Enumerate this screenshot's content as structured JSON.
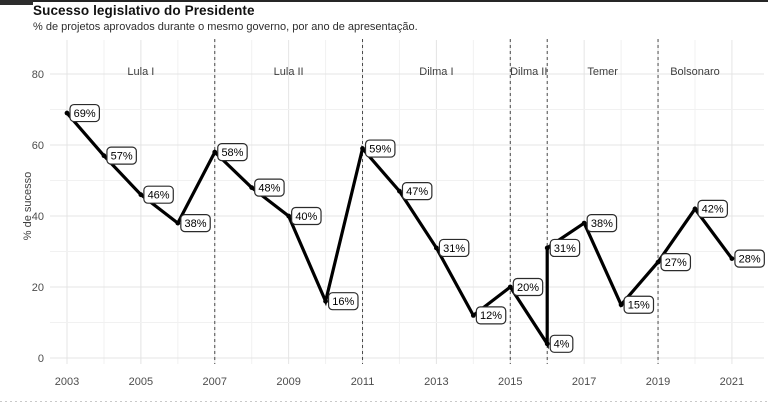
{
  "header": {
    "title": "Sucesso legislativo do Presidente",
    "subtitle": "% de projetos aprovados durante o mesmo governo, por ano de apresentação."
  },
  "chart_data": {
    "type": "line",
    "title": "Sucesso legislativo do Presidente",
    "subtitle": "% de projetos aprovados durante o mesmo governo, por ano de apresentação.",
    "xlabel": "",
    "ylabel": "% de sucesso",
    "xlim": [
      2003,
      2021
    ],
    "ylim": [
      0,
      80
    ],
    "grid": true,
    "legend": "none",
    "x_ticks": [
      2003,
      2005,
      2007,
      2009,
      2011,
      2013,
      2015,
      2017,
      2019,
      2021
    ],
    "y_ticks": [
      0,
      20,
      40,
      60,
      80
    ],
    "points": [
      {
        "year": 2003,
        "value": 69,
        "label": "69%",
        "term": "Lula I"
      },
      {
        "year": 2004,
        "value": 57,
        "label": "57%",
        "term": "Lula I"
      },
      {
        "year": 2005,
        "value": 46,
        "label": "46%",
        "term": "Lula I"
      },
      {
        "year": 2006,
        "value": 38,
        "label": "38%",
        "term": "Lula I"
      },
      {
        "year": 2007,
        "value": 58,
        "label": "58%",
        "term": "Lula II"
      },
      {
        "year": 2008,
        "value": 48,
        "label": "48%",
        "term": "Lula II"
      },
      {
        "year": 2009,
        "value": 40,
        "label": "40%",
        "term": "Lula II"
      },
      {
        "year": 2010,
        "value": 16,
        "label": "16%",
        "term": "Lula II"
      },
      {
        "year": 2011,
        "value": 59,
        "label": "59%",
        "term": "Dilma I"
      },
      {
        "year": 2012,
        "value": 47,
        "label": "47%",
        "term": "Dilma I"
      },
      {
        "year": 2013,
        "value": 31,
        "label": "31%",
        "term": "Dilma I"
      },
      {
        "year": 2014,
        "value": 12,
        "label": "12%",
        "term": "Dilma I"
      },
      {
        "year": 2015,
        "value": 20,
        "label": "20%",
        "term": "Dilma II"
      },
      {
        "year": 2016,
        "value": 4,
        "label": "4%",
        "term": "Dilma II"
      },
      {
        "year": 2016,
        "value": 31,
        "label": "31%",
        "term": "Temer"
      },
      {
        "year": 2017,
        "value": 38,
        "label": "38%",
        "term": "Temer"
      },
      {
        "year": 2018,
        "value": 15,
        "label": "15%",
        "term": "Temer"
      },
      {
        "year": 2019,
        "value": 27,
        "label": "27%",
        "term": "Bolsonaro"
      },
      {
        "year": 2020,
        "value": 42,
        "label": "42%",
        "term": "Bolsonaro"
      },
      {
        "year": 2021,
        "value": 28,
        "label": "28%",
        "term": "Bolsonaro"
      }
    ],
    "separators": [
      2007,
      2011,
      2015,
      2016,
      2019
    ],
    "terms": [
      {
        "name": "Lula I",
        "center_year": 2005
      },
      {
        "name": "Lula II",
        "center_year": 2009
      },
      {
        "name": "Dilma I",
        "center_year": 2013
      },
      {
        "name": "Dilma II",
        "center_year": 2015.5
      },
      {
        "name": "Temer",
        "center_year": 2017.5
      },
      {
        "name": "Bolsonaro",
        "center_year": 2020
      }
    ],
    "colors": {
      "line": "#000000",
      "label_box_fill": "#ffffff",
      "label_box_stroke": "#2b2b2b",
      "grid_major": "#e4e4e4",
      "grid_minor": "#f1f1f1",
      "separator": "#4a4a4a",
      "tick_text": "#4d4d4d",
      "term_text": "#3d3d3d"
    }
  }
}
